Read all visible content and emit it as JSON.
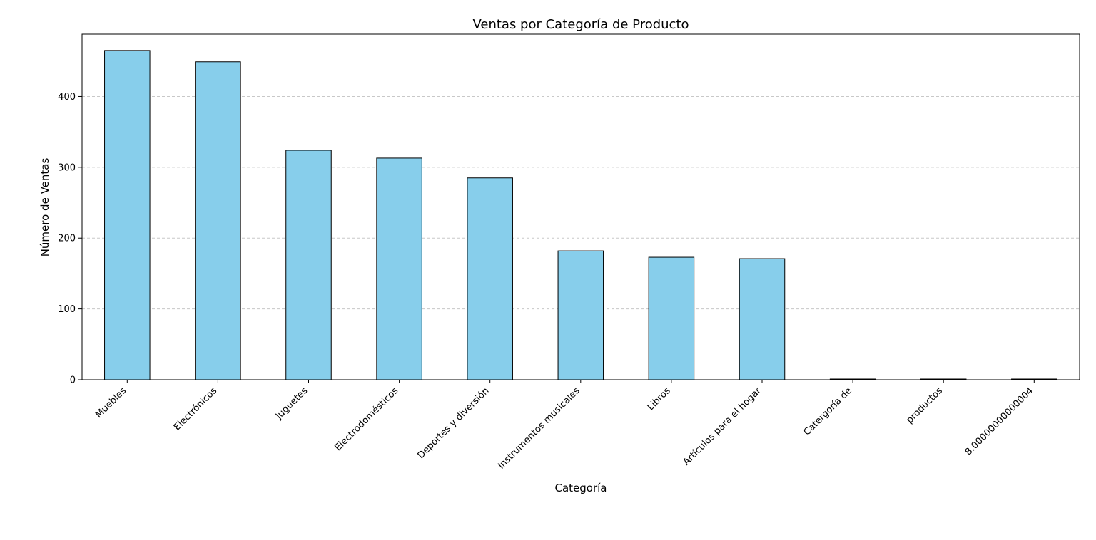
{
  "chart_data": {
    "type": "bar",
    "title": "Ventas por Categoría de Producto",
    "xlabel": "Categoría",
    "ylabel": "Número de Ventas",
    "categories": [
      "Muebles",
      "Electrónicos",
      "Juguetes",
      "Electrodomésticos",
      "Deportes y diversión",
      "Instrumentos musicales",
      "Libros",
      "Artículos para el hogar",
      "Catergoría de",
      "productos",
      "8.00000000000004"
    ],
    "values": [
      465,
      449,
      324,
      313,
      285,
      182,
      173,
      171,
      1,
      1,
      1
    ],
    "ylim": [
      0,
      488
    ],
    "yticks": [
      0,
      100,
      200,
      300,
      400
    ],
    "grid": "y-dashed",
    "colors": {
      "bar_fill": "#87ceeb",
      "bar_edge": "#000000",
      "grid": "#c8c8c8",
      "axis": "#000000"
    }
  }
}
